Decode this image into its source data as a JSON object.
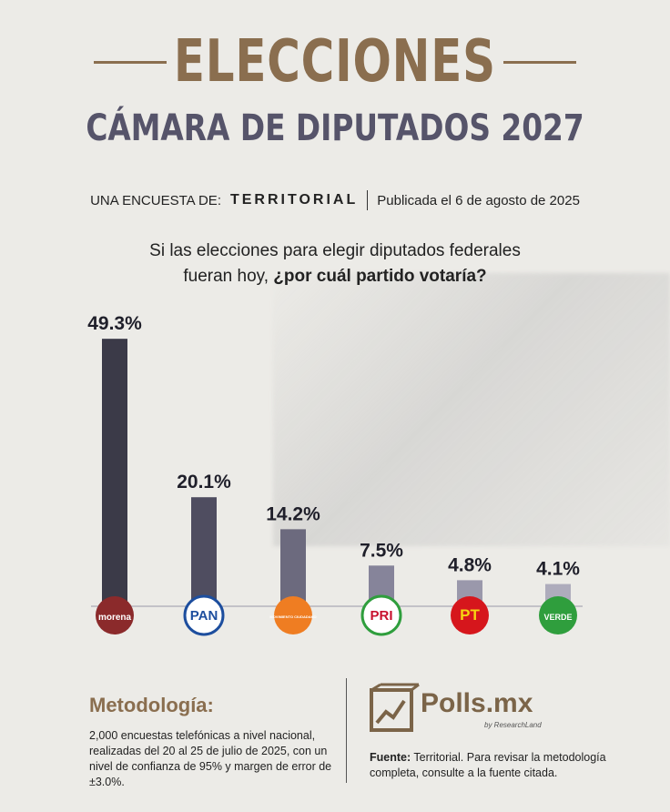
{
  "header": {
    "title": "ELECCIONES",
    "subtitle": "CÁMARA DE DIPUTADOS 2027",
    "survey_prefix": "UNA ENCUESTA DE:",
    "survey_brand": "TERRITORIAL",
    "published": "Publicada el 6 de agosto de 2025"
  },
  "question": {
    "line1": "Si las elecciones para elegir diputados federales",
    "line2_plain": "fueran hoy,",
    "line2_bold": "¿por cuál partido votaría?"
  },
  "chart_data": {
    "type": "bar",
    "categories": [
      "morena",
      "PAN",
      "Movimiento Ciudadano",
      "PRI",
      "PT",
      "VERDE"
    ],
    "values": [
      49.3,
      20.1,
      14.2,
      7.5,
      4.8,
      4.1
    ],
    "value_labels": [
      "49.3%",
      "20.1%",
      "14.2%",
      "7.5%",
      "4.8%",
      "4.1%"
    ],
    "ylim": [
      0,
      50
    ],
    "grid": false,
    "bar_colors": [
      "#3b3a48",
      "#4f4d60",
      "#6c6a7e",
      "#86849a",
      "#9a98ab",
      "#aeacbc"
    ],
    "logos": [
      {
        "text": "morena",
        "bg": "#8b2a2b",
        "fg": "#ffffff",
        "icon": "morena-logo"
      },
      {
        "text": "PAN",
        "bg": "#ffffff",
        "fg": "#1d4e9e",
        "icon": "pan-logo"
      },
      {
        "text": "MOVIMIENTO CIUDADANO",
        "bg": "#ef7d22",
        "fg": "#ffffff",
        "icon": "mc-eagle-logo"
      },
      {
        "text": "PRI",
        "bg": "#ffffff",
        "fg": "#c8102e",
        "icon": "pri-logo"
      },
      {
        "text": "PT",
        "bg": "#d6161c",
        "fg": "#f6d312",
        "icon": "pt-star-logo"
      },
      {
        "text": "VERDE",
        "bg": "#2f9e3d",
        "fg": "#ffffff",
        "icon": "verde-toucan-logo"
      }
    ]
  },
  "methodology": {
    "title": "Metodología:",
    "text": "2,000 encuestas telefónicas a nivel nacional, realizadas del 20 al 25 de julio de 2025, con un nivel de confianza de 95% y margen de error de ±3.0%."
  },
  "footer": {
    "brand": "Polls.mx",
    "tagline": "by ResearchLand",
    "fuente_label": "Fuente:",
    "fuente_text": "Territorial. Para revisar la metodología completa, consulte a la fuente citada."
  },
  "colors": {
    "accent": "#8a6e4f",
    "subtitle": "#56546a",
    "background": "#ecebe7"
  }
}
